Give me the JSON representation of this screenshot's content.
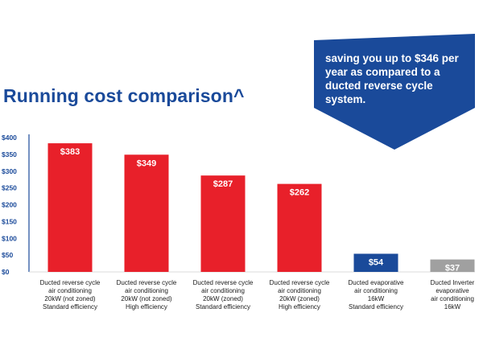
{
  "title": "Running cost comparison^",
  "callout": {
    "text": "saving you up to $346 per year as compared to a ducted reverse cycle system."
  },
  "colors": {
    "brand_blue": "#1a4a9a",
    "bar_red": "#e8202a",
    "bar_grey": "#a0a0a0",
    "axis_text": "#1a4a9a"
  },
  "chart_data": {
    "type": "bar",
    "ylim": [
      0,
      400
    ],
    "y_ticks": [
      "$0",
      "$50",
      "$100",
      "$150",
      "$200",
      "$250",
      "$300",
      "$350",
      "$400"
    ],
    "categories": [
      [
        "Ducted reverse cycle",
        "air conditioning",
        "20kW (not zoned)",
        "Standard efficiency"
      ],
      [
        "Ducted reverse cycle",
        "air conditioning",
        "20kW (not zoned)",
        "High efficiency"
      ],
      [
        "Ducted reverse cycle",
        "air conditioning",
        "20kW (zoned)",
        "Standard efficiency"
      ],
      [
        "Ducted reverse cycle",
        "air conditioning",
        "20kW (zoned)",
        "High efficiency"
      ],
      [
        "Ducted evaporative",
        "air conditioning",
        "16kW",
        "Standard efficiency"
      ],
      [
        "Ducted Inverter",
        "evaporative",
        "air conditioning",
        "16kW"
      ]
    ],
    "values": [
      383,
      349,
      287,
      262,
      54,
      37
    ],
    "data_labels": [
      "$383",
      "$349",
      "$287",
      "$262",
      "$54",
      "$37"
    ],
    "bar_colors": [
      "#e8202a",
      "#e8202a",
      "#e8202a",
      "#e8202a",
      "#1a4a9a",
      "#a0a0a0"
    ],
    "grid": false,
    "legend": "none"
  }
}
